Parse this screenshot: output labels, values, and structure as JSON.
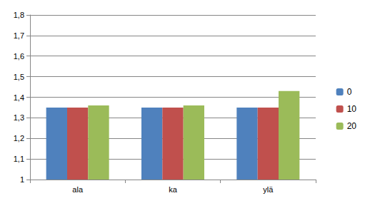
{
  "chart_data": {
    "type": "bar",
    "categories": [
      "ala",
      "ka",
      "ylä"
    ],
    "series": [
      {
        "name": "0",
        "color": "#4f81bd",
        "values": [
          1.35,
          1.35,
          1.35
        ]
      },
      {
        "name": "10",
        "color": "#c0504d",
        "values": [
          1.35,
          1.35,
          1.35
        ]
      },
      {
        "name": "20",
        "color": "#9bbb59",
        "values": [
          1.36,
          1.36,
          1.43
        ]
      }
    ],
    "ylim": [
      1,
      1.8
    ],
    "yticks": [
      1,
      {
        "value": 1.1,
        "label": "1,1"
      },
      {
        "value": 1.2,
        "label": "1,2"
      },
      {
        "value": 1.3,
        "label": "1,3"
      },
      {
        "value": 1.4,
        "label": "1,4"
      },
      {
        "value": 1.5,
        "label": "1,5"
      },
      {
        "value": 1.6,
        "label": "1,6"
      },
      {
        "value": 1.7,
        "label": "1,7"
      },
      {
        "value": 1.8,
        "label": "1,8"
      }
    ],
    "grid": true,
    "legend": "right"
  }
}
